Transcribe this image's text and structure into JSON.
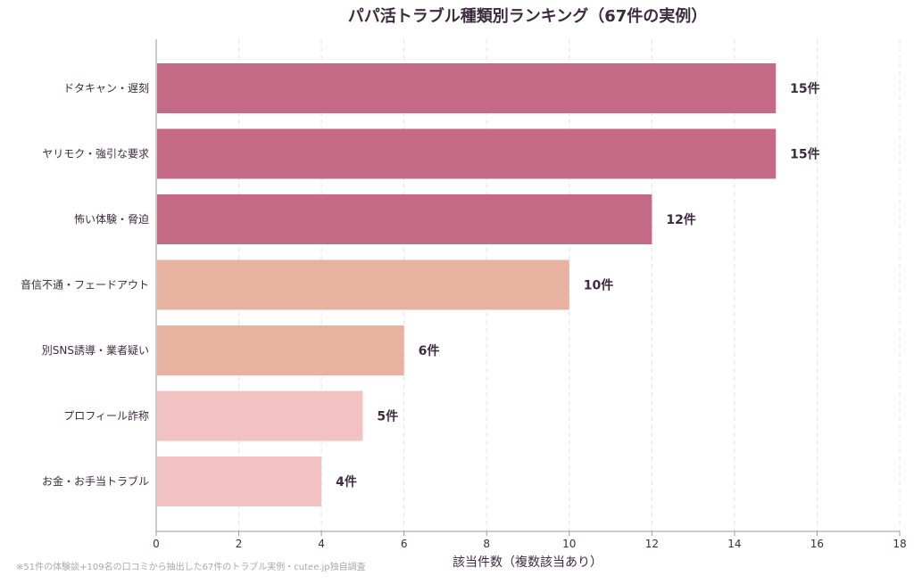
{
  "chart_data": {
    "type": "bar",
    "orientation": "horizontal",
    "title": "パパ活トラブル種類別ランキング（67件の実例）",
    "xlabel": "該当件数（複数該当あり）",
    "ylabel": "",
    "categories": [
      "ドタキャン・遅刻",
      "ヤリモク・強引な要求",
      "怖い体験・脅迫",
      "音信不通・フェードアウト",
      "別SNS誘導・業者疑い",
      "プロフィール詐称",
      "お金・お手当トラブル"
    ],
    "values": [
      15,
      15,
      12,
      10,
      6,
      5,
      4
    ],
    "value_labels": [
      "15件",
      "15件",
      "12件",
      "10件",
      "6件",
      "5件",
      "4件"
    ],
    "bar_colors": [
      "#c56a86",
      "#c56a86",
      "#c56a86",
      "#e7b3a0",
      "#e7b3a0",
      "#f2c2c2",
      "#f2c2c2"
    ],
    "xlim": [
      0,
      18
    ],
    "x_ticks": [
      "0",
      "2",
      "4",
      "6",
      "8",
      "10",
      "12",
      "14",
      "16",
      "18"
    ],
    "grid": "vertical dashed",
    "legend": "none",
    "footnote": "※51件の体験談+109名の口コミから抽出した67件のトラブル実例・cutee.jp独自調査"
  }
}
